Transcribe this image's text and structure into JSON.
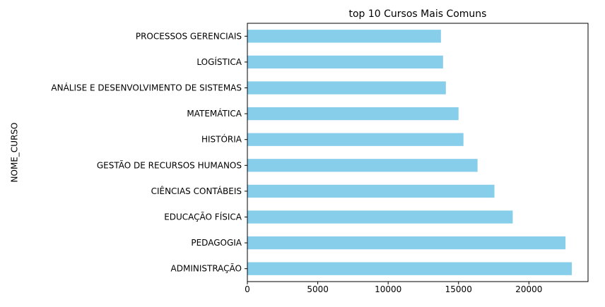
{
  "chart_data": {
    "type": "bar",
    "orientation": "horizontal",
    "title": "top 10 Cursos Mais Comuns",
    "xlabel": "",
    "ylabel": "NOME_CURSO",
    "categories": [
      "ADMINISTRAÇÃO",
      "PEDAGOGIA",
      "EDUCAÇÃO FÍSICA",
      "CIÊNCIAS CONTÁBEIS",
      "GESTÃO DE RECURSOS HUMANOS",
      "HISTÓRIA",
      "MATEMÁTICA",
      "ANÁLISE E DESENVOLVIMENTO DE SISTEMAS",
      "LOGÍSTICA",
      "PROCESSOS GERENCIAIS"
    ],
    "values": [
      23050,
      22600,
      18850,
      17550,
      16350,
      15350,
      15000,
      14100,
      13900,
      13750
    ],
    "xlim": [
      0,
      24200
    ],
    "xticks": [
      0,
      5000,
      10000,
      15000,
      20000
    ],
    "xtick_labels": [
      "0",
      "5000",
      "10000",
      "15000",
      "20000"
    ],
    "bar_color": "#87ceeb",
    "grid": false,
    "legend": "none"
  }
}
